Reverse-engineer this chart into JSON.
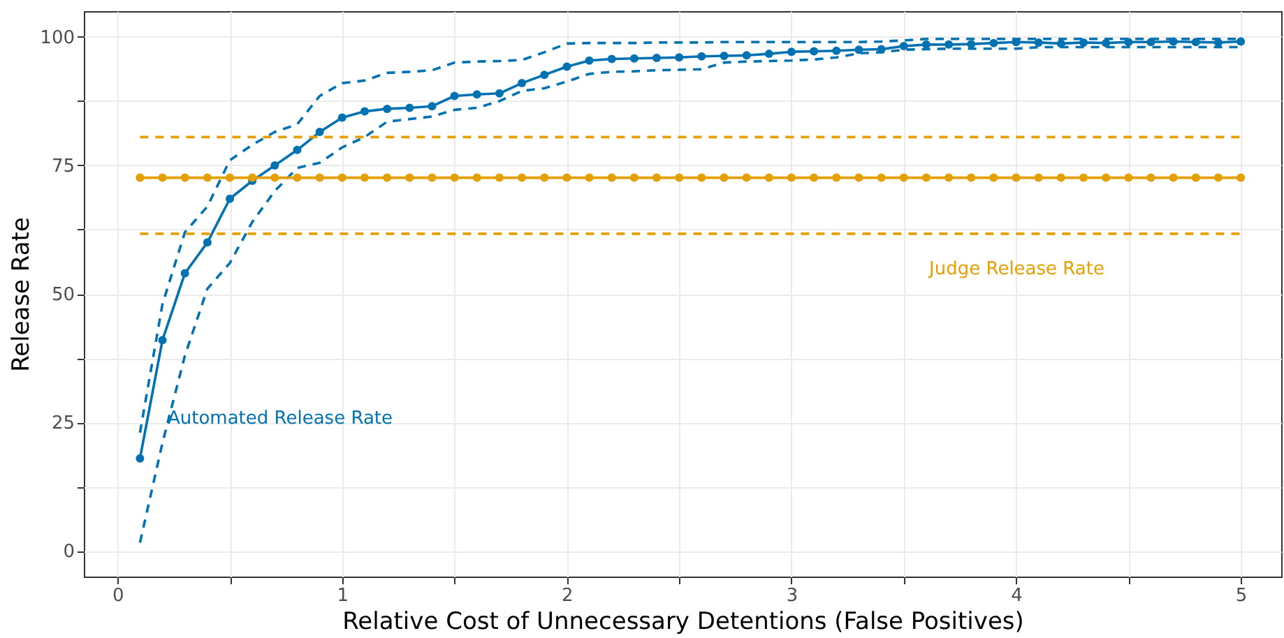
{
  "chart_data": {
    "type": "line",
    "xlabel": "Relative Cost of Unnecessary Detentions (False Positives)",
    "ylabel": "Release Rate",
    "x": [
      0.1,
      0.2,
      0.3,
      0.4,
      0.5,
      0.6,
      0.7,
      0.8,
      0.9,
      1.0,
      1.1,
      1.2,
      1.3,
      1.4,
      1.5,
      1.6,
      1.7,
      1.8,
      1.9,
      2.0,
      2.1,
      2.2,
      2.3,
      2.4,
      2.5,
      2.6,
      2.7,
      2.8,
      2.9,
      3.0,
      3.1,
      3.2,
      3.3,
      3.4,
      3.5,
      3.6,
      3.7,
      3.8,
      3.9,
      4.0,
      4.1,
      4.2,
      4.3,
      4.4,
      4.5,
      4.6,
      4.7,
      4.8,
      4.9,
      5.0
    ],
    "series": [
      {
        "color": "#0072b2",
        "line_style": "dashed",
        "marker": "none",
        "values": [
          1.6,
          21,
          38,
          51,
          56,
          64,
          70,
          74.5,
          75.5,
          78.5,
          80.5,
          83.5,
          84,
          84.5,
          85.8,
          86.2,
          87.5,
          89.5,
          90,
          91.3,
          92.8,
          93.2,
          93.3,
          93.5,
          93.6,
          93.7,
          95,
          95.2,
          95.3,
          95.4,
          95.6,
          96,
          96.8,
          97,
          97.5,
          97.6,
          97.7,
          97.7,
          97.7,
          97.7,
          98,
          98,
          98,
          98,
          98,
          98,
          98,
          98,
          98,
          98
        ]
      },
      {
        "color": "#0072b2",
        "line_style": "dashed",
        "marker": "none",
        "values": [
          23,
          48,
          62,
          67,
          76,
          79,
          81.5,
          83,
          88.5,
          91,
          91.5,
          93,
          93.2,
          93.5,
          95,
          95.2,
          95.3,
          95.5,
          97,
          98.7,
          98.8,
          98.8,
          98.8,
          98.9,
          98.9,
          98.9,
          99,
          99,
          99,
          99,
          99,
          99,
          99,
          99.1,
          99.3,
          99.6,
          99.6,
          99.6,
          99.6,
          99.6,
          99.6,
          99.6,
          99.6,
          99.6,
          99.6,
          99.6,
          99.6,
          99.6,
          99.6,
          99.6
        ]
      },
      {
        "color": "#0072b2",
        "values": [
          18,
          41,
          54,
          60,
          68.5,
          72,
          75,
          78,
          81.5,
          84.3,
          85.5,
          86,
          86.2,
          86.5,
          88.5,
          88.8,
          89,
          91,
          92.6,
          94.2,
          95.4,
          95.7,
          95.8,
          95.9,
          96,
          96.2,
          96.3,
          96.4,
          96.7,
          97.1,
          97.2,
          97.3,
          97.5,
          97.6,
          98.2,
          98.5,
          98.5,
          98.6,
          98.8,
          99,
          98.9,
          98.7,
          98.9,
          98.8,
          99,
          99,
          99.1,
          99,
          98.9,
          99.1
        ]
      },
      {
        "color": "#e69f00",
        "line_style": "dashed",
        "marker": "none",
        "values": [
          61.7,
          61.7,
          61.7,
          61.7,
          61.7,
          61.7,
          61.7,
          61.7,
          61.7,
          61.7,
          61.7,
          61.7,
          61.7,
          61.7,
          61.7,
          61.7,
          61.7,
          61.7,
          61.7,
          61.7,
          61.7,
          61.7,
          61.7,
          61.7,
          61.7,
          61.7,
          61.7,
          61.7,
          61.7,
          61.7,
          61.7,
          61.7,
          61.7,
          61.7,
          61.7,
          61.7,
          61.7,
          61.7,
          61.7,
          61.7,
          61.7,
          61.7,
          61.7,
          61.7,
          61.7,
          61.7,
          61.7,
          61.7,
          61.7,
          61.7
        ]
      },
      {
        "color": "#e69f00",
        "line_style": "dashed",
        "marker": "none",
        "values": [
          80.5,
          80.5,
          80.5,
          80.5,
          80.5,
          80.5,
          80.5,
          80.5,
          80.5,
          80.5,
          80.5,
          80.5,
          80.5,
          80.5,
          80.5,
          80.5,
          80.5,
          80.5,
          80.5,
          80.5,
          80.5,
          80.5,
          80.5,
          80.5,
          80.5,
          80.5,
          80.5,
          80.5,
          80.5,
          80.5,
          80.5,
          80.5,
          80.5,
          80.5,
          80.5,
          80.5,
          80.5,
          80.5,
          80.5,
          80.5,
          80.5,
          80.5,
          80.5,
          80.5,
          80.5,
          80.5,
          80.5,
          80.5,
          80.5,
          80.5
        ]
      },
      {
        "color": "#e69f00",
        "values": [
          72.6,
          72.6,
          72.6,
          72.6,
          72.6,
          72.6,
          72.6,
          72.6,
          72.6,
          72.6,
          72.6,
          72.6,
          72.6,
          72.6,
          72.6,
          72.6,
          72.6,
          72.6,
          72.6,
          72.6,
          72.6,
          72.6,
          72.6,
          72.6,
          72.6,
          72.6,
          72.6,
          72.6,
          72.6,
          72.6,
          72.6,
          72.6,
          72.6,
          72.6,
          72.6,
          72.6,
          72.6,
          72.6,
          72.6,
          72.6,
          72.6,
          72.6,
          72.6,
          72.6,
          72.6,
          72.6,
          72.6,
          72.6,
          72.6,
          72.6
        ]
      }
    ],
    "annotations": [
      "Automated Release Rate",
      "Judge Release Rate"
    ],
    "xlim": [
      -0.15,
      5.18
    ],
    "ylim": [
      -5,
      105
    ],
    "xticks": [
      0,
      {
        "value": 0.5,
        "label": null
      },
      1,
      {
        "value": 1.5,
        "label": null
      },
      2,
      {
        "value": 2.5,
        "label": null
      },
      3,
      {
        "value": 3.5,
        "label": null
      },
      4,
      {
        "value": 4.5,
        "label": null
      },
      5
    ],
    "yticks": [
      0,
      {
        "value": 12.5,
        "label": null
      },
      25,
      {
        "value": 37.5,
        "label": null
      },
      50,
      {
        "value": 62.5,
        "label": null
      },
      75,
      {
        "value": 87.5,
        "label": null
      },
      100
    ],
    "grid": true,
    "marker": "circle",
    "line_style": "solid"
  }
}
